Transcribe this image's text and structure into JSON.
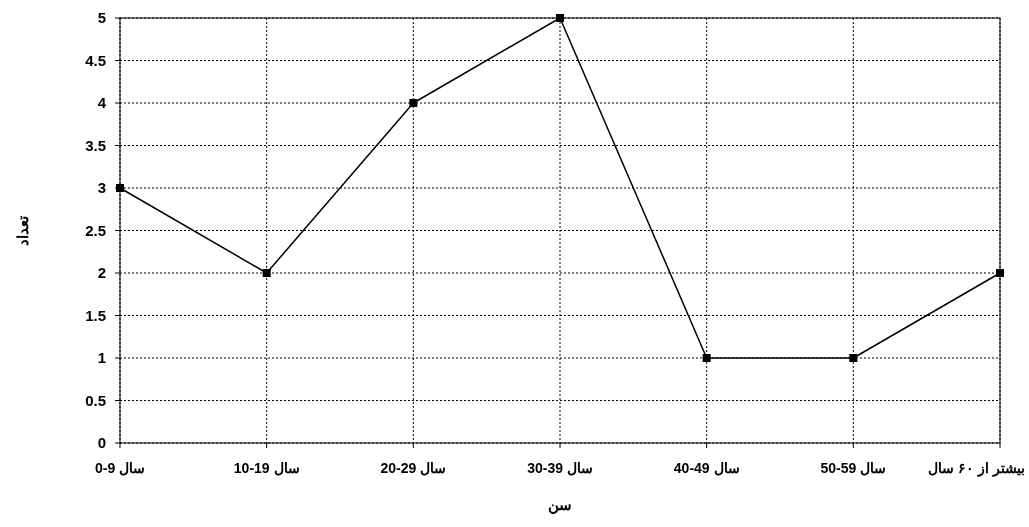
{
  "chart_data": {
    "type": "line",
    "xlabel": "سن",
    "ylabel": "تعداد",
    "categories": [
      "سال 9-0",
      "سال 19-10",
      "سال 29-20",
      "سال 39-30",
      "سال 49-40",
      "سال 59-50",
      "بیشتر از ۶۰ سال"
    ],
    "series": [
      {
        "color": "#000000",
        "values": [
          3,
          2,
          4,
          5,
          1,
          1,
          2
        ]
      }
    ],
    "ylim": [
      0,
      5
    ],
    "yticks": [
      0,
      0.5,
      1,
      1.5,
      2,
      2.5,
      3,
      3.5,
      4,
      4.5,
      5
    ],
    "grid": true,
    "marker": "square",
    "line_style": "solid"
  }
}
